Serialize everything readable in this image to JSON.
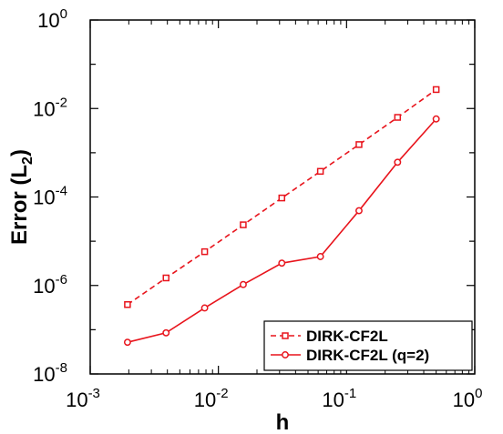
{
  "chart_data": {
    "type": "line",
    "title": "",
    "xlabel": "h",
    "ylabel": {
      "main": "Error (L",
      "sub": "2",
      "close": ")"
    },
    "xscale": "log",
    "yscale": "log",
    "xlim": [
      0.001,
      1
    ],
    "ylim": [
      1e-08,
      1
    ],
    "grid": false,
    "legend_position": "bottom-right",
    "x_ticks": [
      {
        "base": "10",
        "exp": "-3",
        "value": 0.001
      },
      {
        "base": "10",
        "exp": "-2",
        "value": 0.01
      },
      {
        "base": "10",
        "exp": "-1",
        "value": 0.1
      },
      {
        "base": "10",
        "exp": "0",
        "value": 1
      }
    ],
    "y_ticks": [
      {
        "base": "10",
        "exp": "-8",
        "value": 1e-08
      },
      {
        "base": "10",
        "exp": "-6",
        "value": 1e-06
      },
      {
        "base": "10",
        "exp": "-4",
        "value": 0.0001
      },
      {
        "base": "10",
        "exp": "-2",
        "value": 0.01
      },
      {
        "base": "10",
        "exp": "0",
        "value": 1
      }
    ],
    "x": [
      0.001953125,
      0.00390625,
      0.0078125,
      0.015625,
      0.03125,
      0.0625,
      0.125,
      0.25,
      0.5
    ],
    "series": [
      {
        "name": "DIRK-CF2L",
        "color": "#e8141c",
        "line_style": "dashed",
        "marker": "square",
        "values": [
          3.7e-07,
          1.48e-06,
          5.8e-06,
          2.35e-05,
          9.5e-05,
          0.00038,
          0.00153,
          0.0063,
          0.0268
        ]
      },
      {
        "name": "DIRK-CF2L (q=2)",
        "color": "#e8141c",
        "line_style": "solid",
        "marker": "circle",
        "values": [
          5.2e-08,
          8.5e-08,
          3.1e-07,
          1.05e-06,
          3.2e-06,
          4.5e-06,
          4.9e-05,
          0.00061,
          0.0058
        ]
      }
    ]
  }
}
